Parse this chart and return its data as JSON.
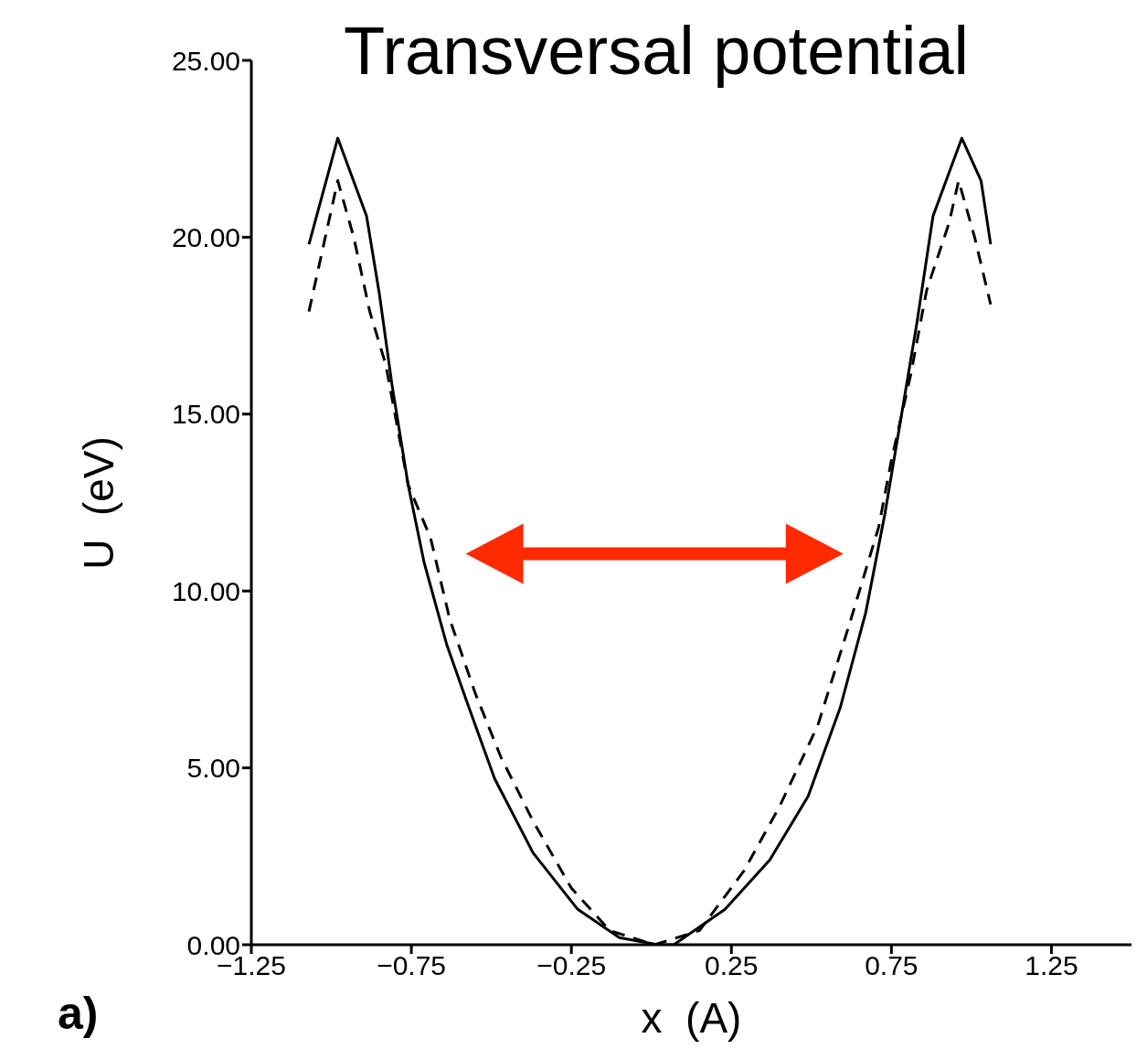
{
  "chart_data": {
    "type": "line",
    "title": "Transversal potential",
    "xlabel": "x  (A)",
    "ylabel": "U  (eV)",
    "xlim": [
      -1.25,
      1.5
    ],
    "xticks": [
      {
        "value": -1.25,
        "label": "−1.25"
      },
      {
        "value": -0.75,
        "label": "−0.75"
      },
      {
        "value": -0.25,
        "label": "−0.25"
      },
      {
        "value": 0.25,
        "label": "0.25"
      },
      {
        "value": 0.75,
        "label": "0.75"
      },
      {
        "value": 1.25,
        "label": "1.25"
      }
    ],
    "ylim": [
      0,
      25
    ],
    "yticks": [
      {
        "value": 0,
        "label": "0.00"
      },
      {
        "value": 5,
        "label": "5.00"
      },
      {
        "value": 10,
        "label": "10.00"
      },
      {
        "value": 15,
        "label": "15.00"
      },
      {
        "value": 20,
        "label": "20.00"
      },
      {
        "value": 25,
        "label": "25.00"
      }
    ],
    "grid": false,
    "marker": "none",
    "annotations": [
      "a)"
    ],
    "series": [
      {
        "color": "#000000",
        "line_style": "solid",
        "x": [
          -1.07,
          -0.98,
          -0.89,
          -0.85,
          -0.81,
          -0.76,
          -0.71,
          -0.64,
          -0.57,
          -0.49,
          -0.37,
          -0.23,
          -0.1,
          0.02,
          0.07,
          0.23,
          0.37,
          0.49,
          0.59,
          0.67,
          0.73,
          0.78,
          0.83,
          0.88,
          0.97,
          1.03,
          1.06
        ],
        "values": [
          19.8,
          22.8,
          20.6,
          18.4,
          15.8,
          13.0,
          10.8,
          8.5,
          6.7,
          4.7,
          2.6,
          1.0,
          0.2,
          0,
          0,
          1.0,
          2.4,
          4.2,
          6.7,
          9.4,
          12.2,
          14.9,
          17.6,
          20.6,
          22.8,
          21.6,
          19.8
        ]
      },
      {
        "color": "#000000",
        "line_style": "dashed",
        "x": [
          -1.07,
          -0.98,
          -0.93,
          -0.88,
          -0.83,
          -0.76,
          -0.69,
          -0.63,
          -0.55,
          -0.47,
          -0.37,
          -0.25,
          -0.13,
          0.01,
          0.15,
          0.29,
          0.4,
          0.52,
          0.62,
          0.71,
          0.75,
          0.81,
          0.86,
          0.93,
          0.96,
          1.01,
          1.06
        ],
        "values": [
          17.9,
          21.6,
          20.0,
          17.9,
          16.4,
          13.0,
          11.5,
          9.2,
          7.1,
          5.3,
          3.5,
          1.6,
          0.4,
          0,
          0.4,
          2.1,
          3.9,
          6.2,
          9.1,
          11.8,
          13.7,
          16.1,
          18.5,
          20.4,
          21.6,
          20.0,
          18.1
        ]
      }
    ]
  }
}
